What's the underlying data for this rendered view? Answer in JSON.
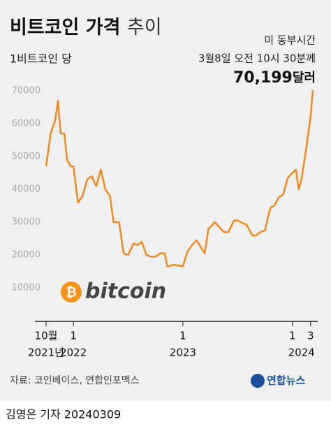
{
  "chart_data": {
    "type": "line",
    "title": "비트코인 가격",
    "title_light": "추이",
    "subtitle": "1비트코인 당",
    "annotation_lines": [
      "미 동부시간",
      "3월8일 오전 10시 30분께"
    ],
    "annotation_value": "70,199",
    "annotation_unit": "달러",
    "logo_text": "bitcoin",
    "source": "자료: 코인베이스, 연합인포맥스",
    "brand": "연합뉴스",
    "credit": "김영은 기자  20240309",
    "color": "#f08a1e",
    "grid": false,
    "ylim": [
      0,
      70000
    ],
    "yticks": [
      10000,
      20000,
      30000,
      40000,
      50000,
      60000,
      70000
    ],
    "xlim": [
      0,
      29.25
    ],
    "xticks": [
      {
        "value": 0,
        "label": "10월"
      },
      {
        "value": 3,
        "label": "1"
      },
      {
        "value": 15,
        "label": "1"
      },
      {
        "value": 27,
        "label": "1"
      },
      {
        "value": 29,
        "label": "3"
      }
    ],
    "x_year_labels": [
      {
        "value": 0,
        "label": "2021년"
      },
      {
        "value": 3,
        "label": "2022"
      },
      {
        "value": 15,
        "label": "2023"
      },
      {
        "value": 28,
        "label": "2024"
      }
    ],
    "x": [
      0,
      0.5,
      1,
      1.3,
      1.6,
      2,
      2.3,
      2.7,
      3,
      3.5,
      4,
      4.5,
      5,
      5.5,
      6,
      6.5,
      7,
      7.4,
      8,
      8.5,
      9,
      9.6,
      10,
      10.5,
      11,
      11.5,
      12,
      12.5,
      13,
      13.3,
      14,
      14.6,
      15,
      15.5,
      16,
      16.5,
      17,
      17.4,
      17.8,
      18,
      18.5,
      19,
      19.5,
      20,
      20.6,
      21,
      21.5,
      22,
      22.6,
      23,
      23.5,
      24,
      24.6,
      25,
      25.5,
      26,
      26.5,
      27,
      27.4,
      27.7,
      28,
      28.5,
      29,
      29.25
    ],
    "values": [
      47000,
      57000,
      61000,
      67000,
      57000,
      57000,
      49000,
      47000,
      47000,
      36000,
      38000,
      43000,
      44000,
      41000,
      46000,
      40000,
      38000,
      30000,
      30000,
      20500,
      20000,
      23500,
      23000,
      24000,
      20000,
      19500,
      19500,
      20500,
      20500,
      16500,
      17000,
      16800,
      16600,
      21000,
      23000,
      24500,
      22300,
      20500,
      28000,
      28500,
      30000,
      28500,
      27000,
      27000,
      30500,
      30500,
      29800,
      29200,
      26000,
      25900,
      27000,
      27500,
      34500,
      35000,
      37500,
      38500,
      43500,
      45000,
      46000,
      40000,
      43000,
      52000,
      62000,
      70199
    ]
  }
}
